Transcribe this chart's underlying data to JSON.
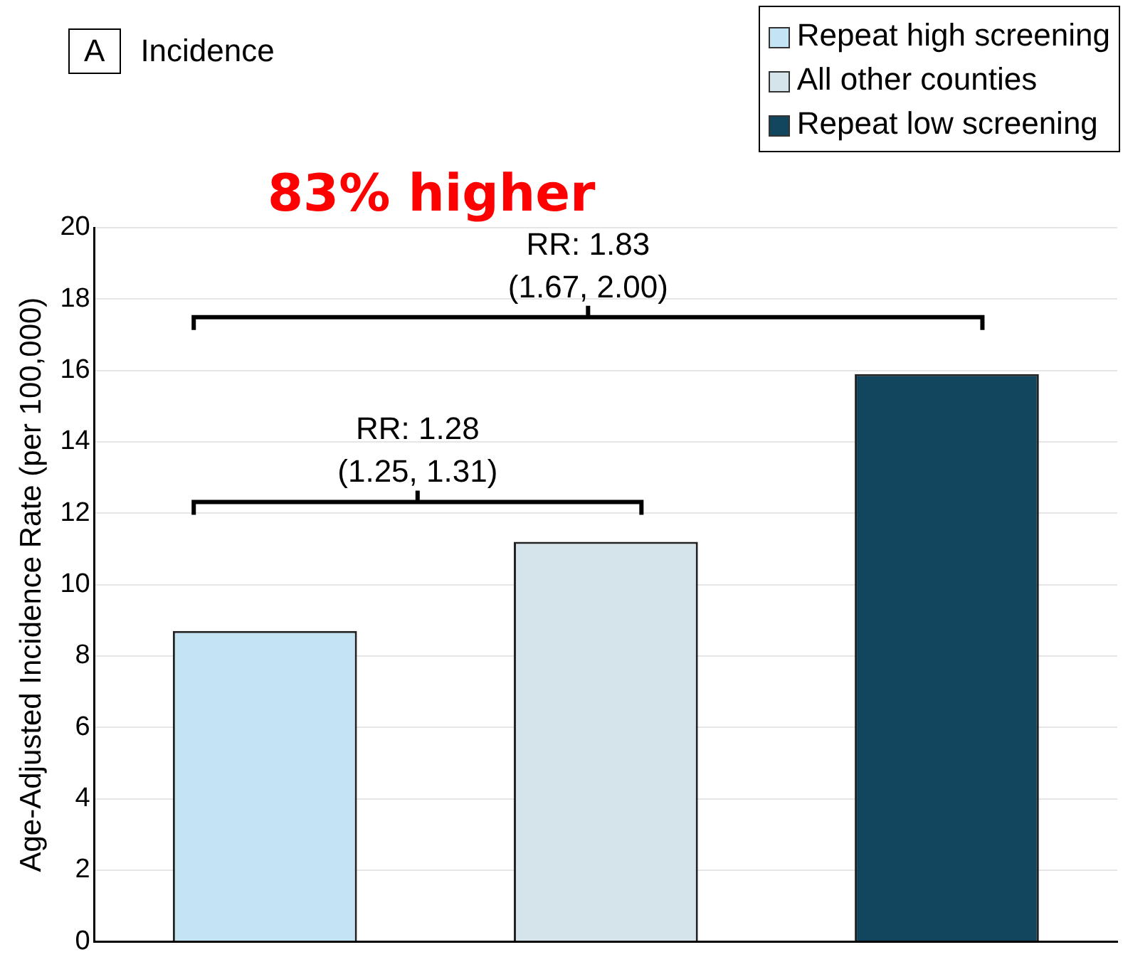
{
  "chart_data": {
    "type": "bar",
    "title": "Incidence",
    "ylabel": "Age-Adjusted Incidence Rate (per 100,000)",
    "categories": [
      null,
      null,
      null
    ],
    "series": [
      {
        "name": "Repeat high screening",
        "color": "#c5e4f3",
        "values": [
          8.7,
          null,
          null
        ]
      },
      {
        "name": "All other counties",
        "color": "#d5e3ea",
        "values": [
          null,
          11.2,
          null
        ]
      },
      {
        "name": "Repeat low screening",
        "color": "#12455e",
        "values": [
          null,
          null,
          15.9
        ]
      }
    ],
    "ylim": [
      0,
      20
    ],
    "yticks": [
      0,
      2,
      4,
      6,
      8,
      10,
      12,
      14,
      16,
      18,
      20
    ],
    "grid": "y",
    "legend": "top right",
    "annotations": [
      "A",
      "83% higher",
      "RR: 1.28\n(1.25, 1.31)",
      "RR: 1.83\n(1.67, 2.00)"
    ]
  }
}
